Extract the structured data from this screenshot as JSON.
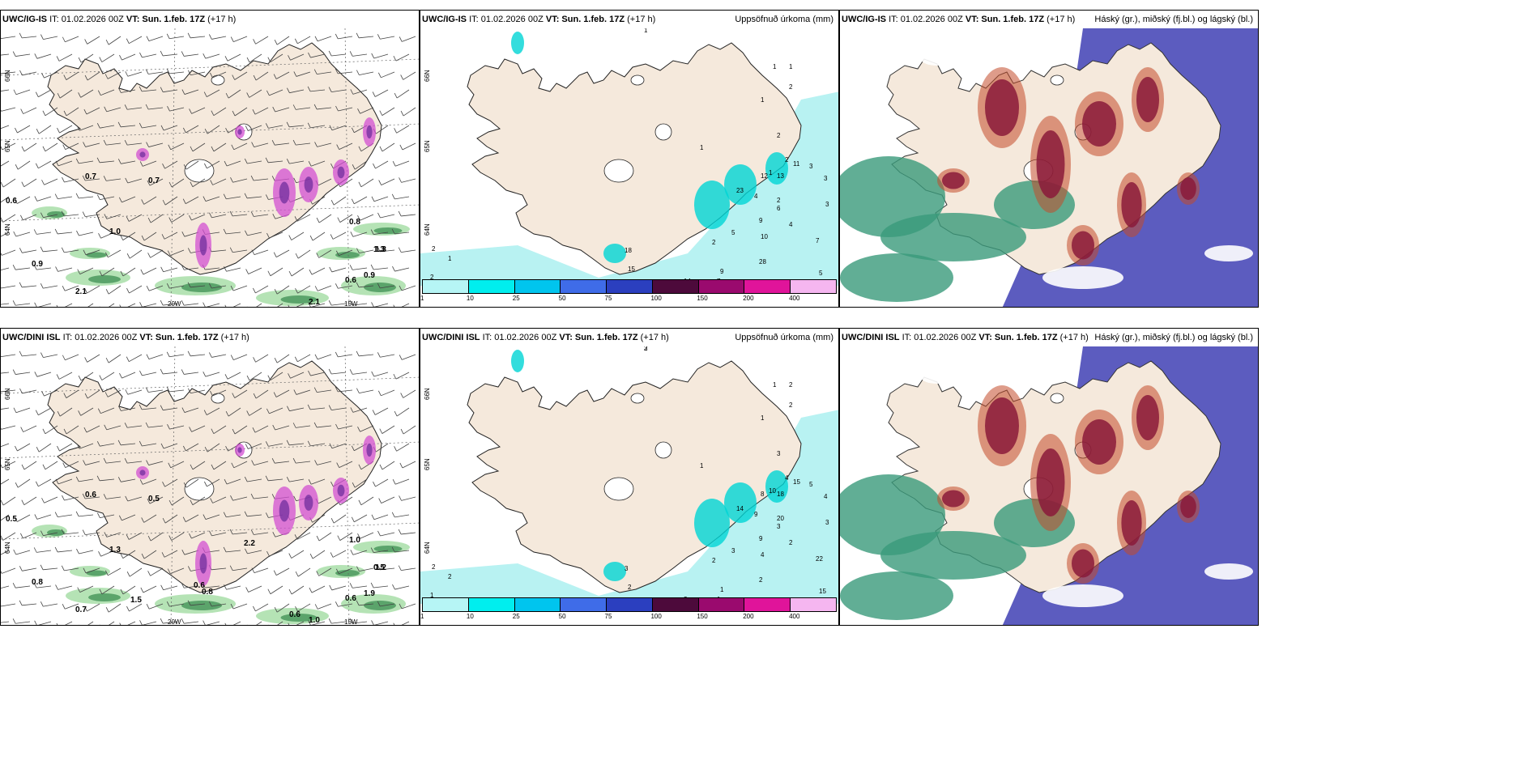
{
  "panels": [
    {
      "id": "tl",
      "model": "UWC/IG-IS",
      "it": "IT: 01.02.2026 00Z",
      "vt": "VT: Sun. 1.feb. 17Z",
      "lead": "(+17 h)",
      "product": "",
      "lat_labels": [
        "66N",
        "65N",
        "64N"
      ],
      "lon_labels": [
        "20W",
        "15W"
      ],
      "values": [
        "0.7",
        "0.7",
        "0.6",
        "1.0",
        "0.9",
        "1.3",
        "2.1",
        "0.8",
        "1.3",
        "0.6",
        "0.9",
        "2.1"
      ]
    },
    {
      "id": "tm",
      "model": "UWC/IG-IS",
      "it": "IT: 01.02.2026 00Z",
      "vt": "VT: Sun. 1.feb. 17Z",
      "lead": "(+17 h)",
      "product": "Uppsöfnuð úrkoma (mm)",
      "lat_labels": [
        "66N",
        "65N",
        "64N"
      ],
      "lon_labels": [],
      "values": [
        "1",
        "1",
        "1",
        "2",
        "1",
        "1",
        "2",
        "2",
        "1",
        "12",
        "13",
        "11",
        "3",
        "3",
        "3",
        "7",
        "2",
        "23",
        "4",
        "9",
        "6",
        "5",
        "4",
        "10",
        "2",
        "28",
        "9",
        "7",
        "14",
        "11",
        "3",
        "5",
        "2",
        "1",
        "2",
        "2",
        "18",
        "15"
      ]
    },
    {
      "id": "tr",
      "model": "UWC/IG-IS",
      "it": "IT: 01.02.2026 00Z",
      "vt": "VT: Sun. 1.feb. 17Z",
      "lead": "(+17 h)",
      "product": "Háský (gr.), miðský (fj.bl.) og lágský (bl.)",
      "lat_labels": [],
      "lon_labels": [],
      "values": []
    },
    {
      "id": "bl",
      "model": "UWC/DINI ISL",
      "it": "IT: 01.02.2026 00Z",
      "vt": "VT: Sun. 1.feb. 17Z",
      "lead": "(+17 h)",
      "product": "",
      "lat_labels": [
        "66N",
        "65N",
        "64N"
      ],
      "lon_labels": [
        "20W",
        "15W"
      ],
      "values": [
        "0.6",
        "0.5",
        "0.5",
        "1.3",
        "0.8",
        "1.2",
        "0.7",
        "1.0",
        "0.5",
        "0.6",
        "1.9",
        "1.0",
        "0.8",
        "0.6",
        "2.2",
        "1.5",
        "0.6"
      ]
    },
    {
      "id": "bm",
      "model": "UWC/DINI ISL",
      "it": "IT: 01.02.2026 00Z",
      "vt": "VT: Sun. 1.feb. 17Z",
      "lead": "(+17 h)",
      "product": "Uppsöfnuð úrkoma (mm)",
      "lat_labels": [
        "66N",
        "65N",
        "64N"
      ],
      "lon_labels": [],
      "values": [
        "2",
        "1",
        "2",
        "2",
        "1",
        "1",
        "3",
        "4",
        "10",
        "8",
        "18",
        "15",
        "5",
        "4",
        "3",
        "22",
        "20",
        "14",
        "9",
        "9",
        "3",
        "3",
        "2",
        "4",
        "2",
        "2",
        "1",
        "1",
        "2",
        "3",
        "2",
        "15",
        "2",
        "2",
        "1",
        "3",
        "3",
        "2",
        "3"
      ]
    },
    {
      "id": "br",
      "model": "UWC/DINI ISL",
      "it": "IT: 01.02.2026 00Z",
      "vt": "VT: Sun. 1.feb. 17Z",
      "lead": "(+17 h)",
      "product": "Háský (gr.), miðský (fj.bl.) og lágský (bl.)",
      "lat_labels": [],
      "lon_labels": [],
      "values": []
    }
  ],
  "colorbar": {
    "ticks": [
      "1",
      "10",
      "25",
      "50",
      "75",
      "100",
      "150",
      "200",
      "400"
    ],
    "colors": [
      "#b6f5f5",
      "#00eeee",
      "#00c5ee",
      "#3f6ce8",
      "#2b3fbf",
      "#4d0a3b",
      "#9a0a6e",
      "#e0149a",
      "#f5b6f0"
    ]
  },
  "colors": {
    "land": "#f5e9dc",
    "ocean": "#ffffff",
    "precip_light": "#b8f2f2",
    "precip_med": "#00d4d4",
    "cloud_high": "#8a1a3a",
    "cloud_mid": "#4a4ab8",
    "cloud_low": "#3a9a7a",
    "pressure_green": "#5cc25c"
  }
}
